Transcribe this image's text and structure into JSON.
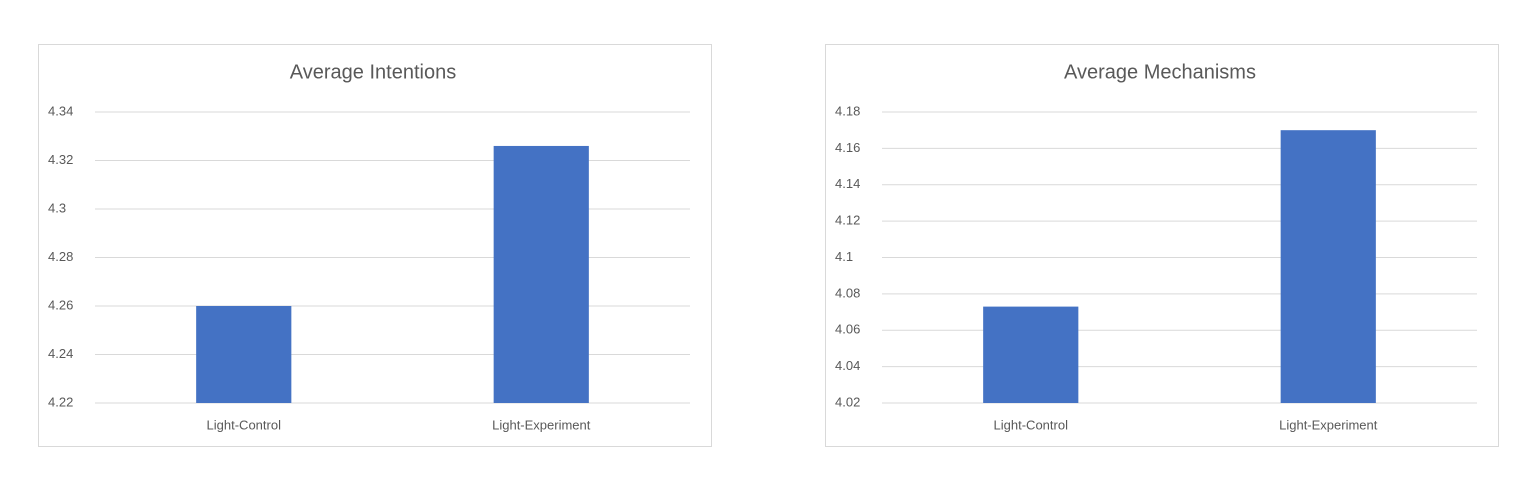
{
  "chart_data": [
    {
      "type": "bar",
      "title": "Average Intentions",
      "categories": [
        "Light-Control",
        "Light-Experiment"
      ],
      "values": [
        4.26,
        4.326
      ],
      "color": "#4472c4",
      "ylim": [
        4.22,
        4.34
      ],
      "yticks": [
        4.22,
        4.24,
        4.26,
        4.28,
        4.3,
        4.32,
        4.34
      ],
      "grid": true
    },
    {
      "type": "bar",
      "title": "Average Mechanisms",
      "categories": [
        "Light-Control",
        "Light-Experiment"
      ],
      "values": [
        4.073,
        4.17
      ],
      "color": "#4472c4",
      "ylim": [
        4.02,
        4.18
      ],
      "yticks": [
        4.02,
        4.04,
        4.06,
        4.08,
        4.1,
        4.12,
        4.14,
        4.16,
        4.18
      ],
      "grid": true
    }
  ]
}
